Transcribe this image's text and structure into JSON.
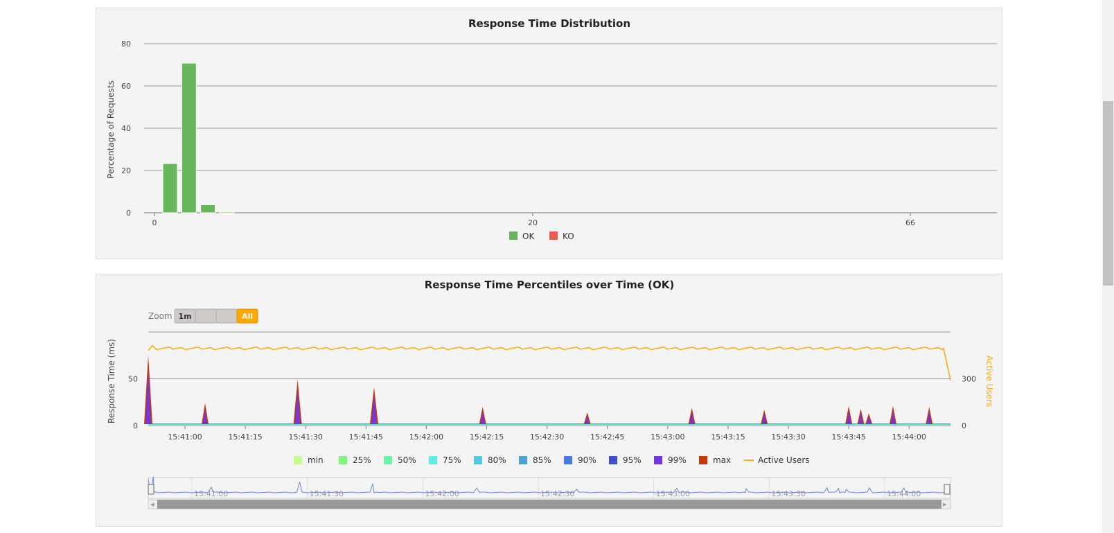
{
  "chart_data": [
    {
      "type": "bar",
      "title": "Response Time Distribution",
      "ylabel": "Percentage of Requests",
      "xlabel": "",
      "ylim": [
        0,
        80
      ],
      "y_ticks": [
        "0",
        "20",
        "40",
        "60",
        "80"
      ],
      "x_ticks": [
        "0",
        "20",
        "66"
      ],
      "grid": true,
      "legend_placement": "bottom-center",
      "categories": [
        "1",
        "2",
        "3",
        "4"
      ],
      "series": [
        {
          "name": "OK",
          "color": "#68b65c",
          "values": [
            23.3,
            70.8,
            3.8,
            0.5
          ]
        },
        {
          "name": "KO",
          "color": "#f15b4f",
          "values": [
            0,
            0,
            0,
            0
          ]
        }
      ]
    },
    {
      "type": "area",
      "title": "Response Time Percentiles over Time (OK)",
      "ylabel": "Response Time (ms)",
      "y2label": "Active Users",
      "y_ticks": [
        "0",
        "50"
      ],
      "y2_ticks": [
        "0",
        "300"
      ],
      "ylim": [
        0,
        100
      ],
      "y2lim": [
        0,
        600
      ],
      "x_ticks": [
        "15:41:00",
        "15:41:15",
        "15:41:30",
        "15:41:45",
        "15:42:00",
        "15:42:15",
        "15:42:30",
        "15:42:45",
        "15:43:00",
        "15:43:15",
        "15:43:30",
        "15:43:45",
        "15:44:00"
      ],
      "grid": true,
      "legend_placement": "bottom-center",
      "zoom": {
        "label": "Zoom",
        "buttons": [
          "1m",
          "",
          "",
          "All"
        ],
        "selected": "All"
      },
      "navigator_ticks": [
        "15:41:00",
        "15:41:30",
        "15:42:00",
        "15:42:30",
        "15:43:00",
        "15:43:30",
        "15:44:00"
      ],
      "series": [
        {
          "name": "min",
          "color": "#c4fd90"
        },
        {
          "name": "25%",
          "color": "#7ff77f"
        },
        {
          "name": "50%",
          "color": "#6ff2ad"
        },
        {
          "name": "75%",
          "color": "#61ede6"
        },
        {
          "name": "80%",
          "color": "#58c7e0"
        },
        {
          "name": "85%",
          "color": "#4ea1d4"
        },
        {
          "name": "90%",
          "color": "#487ad9"
        },
        {
          "name": "95%",
          "color": "#3f52cc"
        },
        {
          "name": "99%",
          "color": "#7335dc"
        },
        {
          "name": "max",
          "color": "#c73905"
        },
        {
          "name": "Active Users",
          "color": "#ffa900",
          "axis": "right"
        }
      ],
      "spikes_max": [
        {
          "t": "15:40:50",
          "ms": 75
        },
        {
          "t": "15:41:05",
          "ms": 24
        },
        {
          "t": "15:41:28",
          "ms": 49
        },
        {
          "t": "15:41:47",
          "ms": 41
        },
        {
          "t": "15:42:14",
          "ms": 20
        },
        {
          "t": "15:42:40",
          "ms": 14
        },
        {
          "t": "15:43:06",
          "ms": 19
        },
        {
          "t": "15:43:24",
          "ms": 17
        },
        {
          "t": "15:43:45",
          "ms": 21
        },
        {
          "t": "15:43:48",
          "ms": 18
        },
        {
          "t": "15:43:50",
          "ms": 13
        },
        {
          "t": "15:43:56",
          "ms": 21
        },
        {
          "t": "15:44:05",
          "ms": 20
        }
      ],
      "active_users_level": 495
    }
  ]
}
